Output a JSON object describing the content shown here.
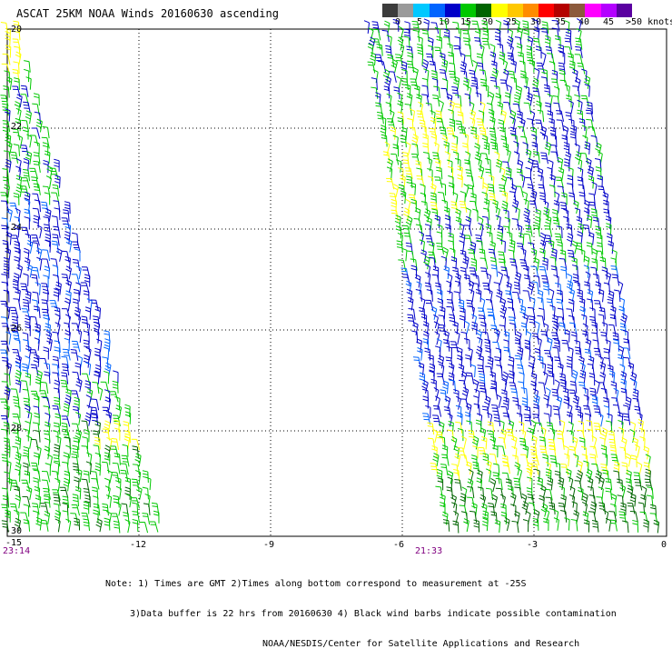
{
  "title": "ASCAT 25KM NOAA Winds 20160630 ascending",
  "legend": {
    "colors": [
      "#3c3c3c",
      "#9a9a9a",
      "#00c8ff",
      "#0064ff",
      "#0000c8",
      "#00c800",
      "#006400",
      "#ffff00",
      "#ffc800",
      "#ff8c00",
      "#ff0000",
      "#b40000",
      "#8c5a3c",
      "#ff00ff",
      "#b400ff",
      "#5a00a0"
    ],
    "labels": [
      "0",
      "5",
      "10",
      "15",
      "20",
      "25",
      "30",
      "35",
      "40",
      "45",
      ">50 knots"
    ]
  },
  "axes": {
    "lat_labels": [
      "-20",
      "-22",
      "-24",
      "-26",
      "-28",
      "-30"
    ],
    "lon_labels": [
      "-15",
      "-12",
      "-9",
      "-6",
      "-3",
      "0"
    ]
  },
  "swath_times": [
    "23:14",
    "21:33"
  ],
  "notes": [
    "Note: 1) Times are GMT 2)Times along bottom correspond to measurement at -25S",
    "3)Data buffer is 22 hrs from 20160630 4) Black wind barbs indicate possible contamination",
    "NOAA/NESDIS/Center for Satellite Applications and Research"
  ],
  "barb_colors": {
    "blue": "#0000c8",
    "blue_light": "#0064ff",
    "green": "#00c800",
    "green_dark": "#006400",
    "yellow": "#ffff00"
  }
}
